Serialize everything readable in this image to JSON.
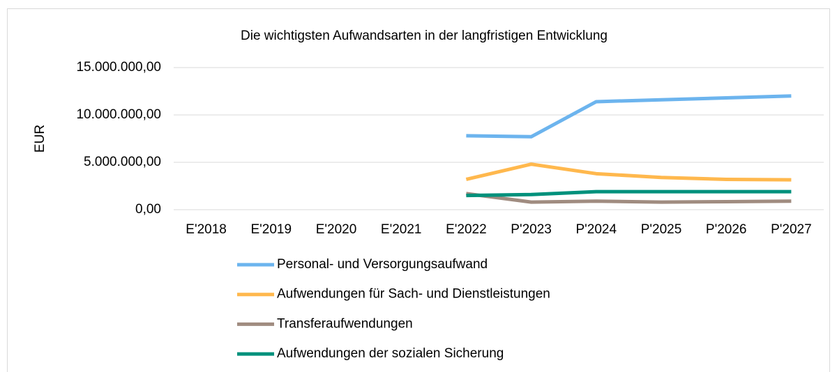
{
  "chart_data": {
    "type": "line",
    "title": "Die wichtigsten Aufwandsarten in der langfristigen Entwicklung",
    "y_label": "EUR",
    "categories": [
      "E'2018",
      "E'2019",
      "E'2020",
      "E'2021",
      "E'2022",
      "P'2023",
      "P'2024",
      "P'2025",
      "P'2026",
      "P'2027"
    ],
    "series": [
      {
        "name": "Personal- und Versorgungsaufwand",
        "color": "#6cb4ee",
        "values": [
          null,
          null,
          null,
          null,
          7800000,
          7700000,
          11400000,
          11600000,
          11800000,
          12000000
        ]
      },
      {
        "name": "Aufwendungen für Sach- und Dienstleistungen",
        "color": "#ffb84d",
        "values": [
          null,
          null,
          null,
          null,
          3200000,
          4800000,
          3800000,
          3400000,
          3200000,
          3150000
        ]
      },
      {
        "name": "Transferaufwendungen",
        "color": "#a08c80",
        "values": [
          null,
          null,
          null,
          null,
          1700000,
          800000,
          900000,
          800000,
          850000,
          900000
        ]
      },
      {
        "name": "Aufwendungen der sozialen Sicherung",
        "color": "#00917c",
        "values": [
          null,
          null,
          null,
          null,
          1500000,
          1600000,
          1900000,
          1900000,
          1900000,
          1900000
        ]
      }
    ],
    "ylim": [
      0,
      15000000
    ],
    "yticks": [
      {
        "value": 0,
        "label": "0,00"
      },
      {
        "value": 5000000,
        "label": "5.000.000,00"
      },
      {
        "value": 10000000,
        "label": "10.000.000,00"
      },
      {
        "value": 15000000,
        "label": "15.000.000,00"
      }
    ],
    "grid": true,
    "legend": "bottom"
  }
}
